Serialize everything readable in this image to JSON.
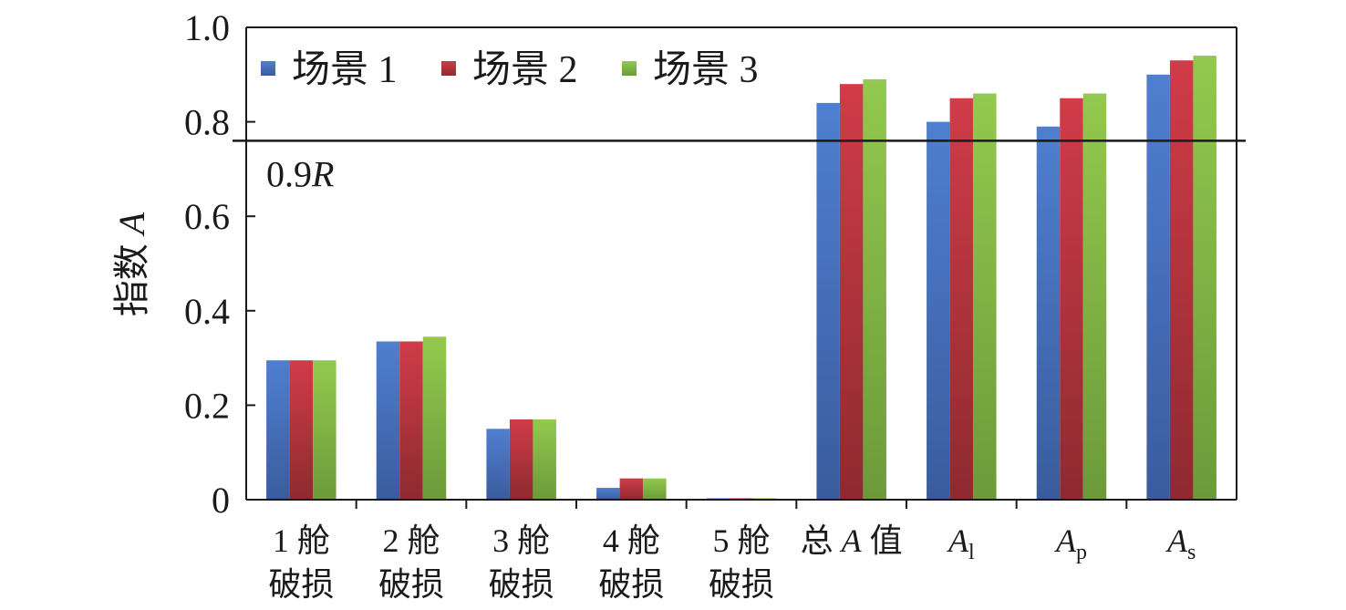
{
  "chart_data": {
    "type": "bar",
    "title": "",
    "xlabel": "",
    "ylabel": "指数 A",
    "ylim": [
      0,
      1.0
    ],
    "yticks": [
      "0",
      "0.2",
      "0.4",
      "0.6",
      "0.8",
      "1.0"
    ],
    "categories": [
      [
        "1 舱",
        "破损"
      ],
      [
        "2 舱",
        "破损"
      ],
      [
        "3 舱",
        "破损"
      ],
      [
        "4 舱",
        "破损"
      ],
      [
        "5 舱",
        "破损"
      ],
      [
        "总 A 值"
      ],
      [
        "Al"
      ],
      [
        "Ap"
      ],
      [
        "As"
      ]
    ],
    "series": [
      {
        "name": "场景 1",
        "color": "#4472c4",
        "values": [
          0.295,
          0.335,
          0.15,
          0.025,
          0.003,
          0.84,
          0.8,
          0.79,
          0.9
        ]
      },
      {
        "name": "场景 2",
        "color": "#c0353f",
        "values": [
          0.295,
          0.335,
          0.17,
          0.045,
          0.003,
          0.88,
          0.85,
          0.85,
          0.93
        ]
      },
      {
        "name": "场景 3",
        "color": "#8bc34a",
        "values": [
          0.295,
          0.345,
          0.17,
          0.045,
          0.003,
          0.89,
          0.86,
          0.86,
          0.94
        ]
      }
    ],
    "reference_line": {
      "label": "0.9R",
      "value": 0.76
    },
    "legend": "top-left",
    "grid": false
  }
}
